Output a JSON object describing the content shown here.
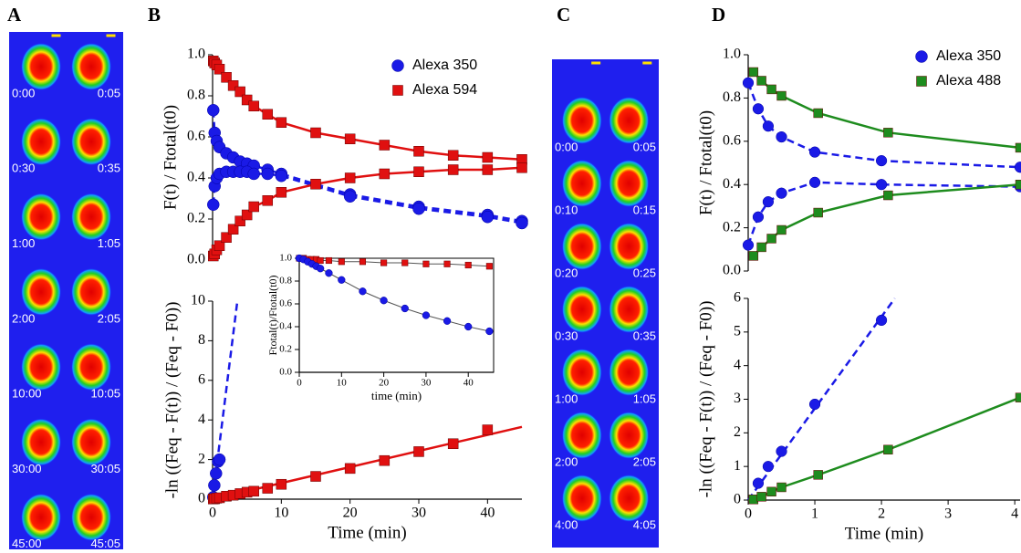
{
  "panel_labels": [
    "A",
    "B",
    "C",
    "D"
  ],
  "images": [
    {
      "rows": [
        [
          "0:00",
          "0:05"
        ],
        [
          "0:30",
          "0:35"
        ],
        [
          "1:00",
          "1:05"
        ],
        [
          "2:00",
          "2:05"
        ],
        [
          "10:00",
          "10:05"
        ],
        [
          "30:00",
          "30:05"
        ],
        [
          "45:00",
          "45:05"
        ]
      ]
    },
    {
      "rows": [
        [
          "0:00",
          "0:05"
        ],
        [
          "0:10",
          "0:15"
        ],
        [
          "0:20",
          "0:25"
        ],
        [
          "0:30",
          "0:35"
        ],
        [
          "1:00",
          "1:05"
        ],
        [
          "2:00",
          "2:05"
        ],
        [
          "4:00",
          "4:05"
        ]
      ]
    }
  ],
  "chart_data": [
    {
      "type": "scatter",
      "ylabel": "F(t) / Ftotal(t0)",
      "xlim": [
        0,
        45
      ],
      "ylim": [
        0,
        1
      ],
      "yticks": [
        {
          "value": 0,
          "label": "0.0"
        },
        0.2,
        0.4,
        0.6,
        0.8,
        {
          "value": 1,
          "label": "1.0"
        }
      ],
      "legend": "upper right",
      "series": [
        {
          "name": "Alexa 350",
          "color": "#1a1ae6",
          "marker": "circle",
          "style": "dashed",
          "x": [
            0.1,
            0.3,
            0.6,
            1,
            2,
            3,
            4,
            5,
            6,
            8,
            10,
            20,
            30,
            40,
            45
          ],
          "values": [
            0.73,
            0.62,
            0.58,
            0.55,
            0.52,
            0.5,
            0.48,
            0.47,
            0.46,
            0.44,
            0.42,
            0.32,
            0.26,
            0.22,
            0.19
          ]
        },
        {
          "color": "#1a1ae6",
          "marker": "circle",
          "style": "dashed",
          "x": [
            0.1,
            0.3,
            0.6,
            1,
            2,
            3,
            4,
            5,
            6,
            8,
            10,
            20,
            30,
            40,
            45
          ],
          "values": [
            0.27,
            0.36,
            0.4,
            0.42,
            0.43,
            0.43,
            0.43,
            0.43,
            0.42,
            0.42,
            0.41,
            0.31,
            0.25,
            0.21,
            0.18
          ]
        },
        {
          "name": "Alexa 594",
          "color": "#e01010",
          "marker": "square",
          "style": "solid",
          "x": [
            0.1,
            0.3,
            0.6,
            1,
            2,
            3,
            4,
            5,
            6,
            8,
            10,
            15,
            20,
            25,
            30,
            35,
            40,
            45
          ],
          "values": [
            0.97,
            0.96,
            0.95,
            0.93,
            0.89,
            0.85,
            0.82,
            0.78,
            0.75,
            0.71,
            0.67,
            0.62,
            0.59,
            0.56,
            0.53,
            0.51,
            0.5,
            0.49
          ]
        },
        {
          "color": "#e01010",
          "marker": "square",
          "style": "solid",
          "x": [
            0.1,
            0.3,
            0.6,
            1,
            2,
            3,
            4,
            5,
            6,
            8,
            10,
            15,
            20,
            25,
            30,
            35,
            40,
            45
          ],
          "values": [
            0.02,
            0.03,
            0.05,
            0.07,
            0.11,
            0.15,
            0.19,
            0.22,
            0.26,
            0.29,
            0.33,
            0.37,
            0.4,
            0.42,
            0.43,
            0.44,
            0.44,
            0.45
          ]
        }
      ]
    },
    {
      "type": "scatter",
      "ylabel": "-ln ((Feq - F(t)) / (Feq - F0))",
      "xlabel": "Time (min)",
      "xlim": [
        0,
        45
      ],
      "ylim": [
        0,
        10
      ],
      "yticks": [
        0,
        2,
        4,
        6,
        8,
        10
      ],
      "xticks": [
        0,
        10,
        20,
        30,
        40
      ],
      "series": [
        {
          "color": "#1a1ae6",
          "style": "dashed",
          "x": [
            0,
            3.6
          ],
          "values": [
            0,
            10
          ]
        },
        {
          "color": "#1a1ae6",
          "marker": "circle",
          "x": [
            0.1,
            0.25,
            0.5,
            0.8,
            1
          ],
          "values": [
            0.1,
            0.7,
            1.3,
            1.9,
            2
          ]
        },
        {
          "color": "#e01010",
          "style": "solid",
          "x": [
            0,
            45
          ],
          "values": [
            0,
            3.65
          ]
        },
        {
          "color": "#e01010",
          "marker": "square",
          "x": [
            0.1,
            0.3,
            0.6,
            1,
            2,
            3,
            4,
            5,
            6,
            8,
            10,
            15,
            20,
            25,
            30,
            35,
            40
          ],
          "values": [
            0.01,
            0.02,
            0.05,
            0.07,
            0.15,
            0.2,
            0.28,
            0.35,
            0.4,
            0.55,
            0.75,
            1.15,
            1.55,
            1.95,
            2.4,
            2.8,
            3.5
          ]
        }
      ]
    },
    {
      "type": "scatter",
      "ylabel": "Ftotal(t)/Ftotal(t0)",
      "xlabel": "time (min)",
      "xlim": [
        0,
        46
      ],
      "ylim": [
        0,
        1
      ],
      "box": true,
      "yticks": [
        {
          "value": 0,
          "label": "0.0"
        },
        0.2,
        0.4,
        0.6,
        0.8,
        {
          "value": 1,
          "label": "1.0"
        }
      ],
      "xticks": [
        0,
        10,
        20,
        30,
        40
      ],
      "series": [
        {
          "color": "#e01010",
          "line_color": "#555555",
          "marker": "square",
          "style": "solid",
          "x": [
            0,
            1,
            2,
            3,
            4,
            5,
            7,
            10,
            15,
            20,
            25,
            30,
            35,
            40,
            45
          ],
          "values": [
            1,
            1,
            0.99,
            0.99,
            0.99,
            0.98,
            0.98,
            0.97,
            0.97,
            0.96,
            0.96,
            0.95,
            0.95,
            0.94,
            0.93
          ]
        },
        {
          "color": "#1a1ae6",
          "line_color": "#555555",
          "marker": "circle",
          "style": "solid",
          "x": [
            0,
            1,
            2,
            3,
            4,
            5,
            7,
            10,
            15,
            20,
            25,
            30,
            35,
            40,
            45
          ],
          "values": [
            1,
            0.99,
            0.97,
            0.95,
            0.93,
            0.91,
            0.87,
            0.81,
            0.71,
            0.63,
            0.56,
            0.5,
            0.45,
            0.4,
            0.36
          ]
        }
      ]
    },
    {
      "type": "scatter",
      "ylabel": "F(t) / Ftotal(t0)",
      "xlim": [
        0,
        4.08
      ],
      "ylim": [
        0,
        1
      ],
      "yticks": [
        {
          "value": 0,
          "label": "0.0"
        },
        0.2,
        0.4,
        0.6,
        0.8,
        {
          "value": 1,
          "label": "1.0"
        }
      ],
      "legend": "upper right",
      "series": [
        {
          "name": "Alexa 350",
          "color": "#1a1ae6",
          "marker": "circle",
          "style": "dashed",
          "x": [
            0,
            0.15,
            0.3,
            0.5,
            1,
            2,
            4.08
          ],
          "values": [
            0.87,
            0.75,
            0.67,
            0.62,
            0.55,
            0.51,
            0.48
          ]
        },
        {
          "color": "#1a1ae6",
          "marker": "circle",
          "style": "dashed",
          "x": [
            0,
            0.15,
            0.3,
            0.5,
            1,
            2,
            4.08
          ],
          "values": [
            0.12,
            0.25,
            0.32,
            0.36,
            0.41,
            0.4,
            0.39
          ]
        },
        {
          "name": "Alexa 488",
          "color": "#1e8c1e",
          "marker": "square",
          "style": "solid",
          "x": [
            0.08,
            0.2,
            0.35,
            0.5,
            1.05,
            2.1,
            4.08
          ],
          "values": [
            0.92,
            0.88,
            0.84,
            0.81,
            0.73,
            0.64,
            0.57
          ]
        },
        {
          "color": "#1e8c1e",
          "marker": "square",
          "style": "solid",
          "x": [
            0.08,
            0.2,
            0.35,
            0.5,
            1.05,
            2.1,
            4.08
          ],
          "values": [
            0.07,
            0.11,
            0.15,
            0.19,
            0.27,
            0.35,
            0.4
          ]
        }
      ]
    },
    {
      "type": "scatter",
      "ylabel": "-ln ((Feq - F(t)) / (Feq - F0))",
      "xlabel": "Time (min)",
      "xlim": [
        0,
        4.08
      ],
      "ylim": [
        0,
        6
      ],
      "yticks": [
        0,
        1,
        2,
        3,
        4,
        5,
        6
      ],
      "xticks": [
        0,
        1,
        2,
        3,
        4
      ],
      "series": [
        {
          "color": "#1a1ae6",
          "style": "dashed",
          "x": [
            0,
            2.2
          ],
          "values": [
            0,
            6
          ]
        },
        {
          "color": "#1a1ae6",
          "marker": "circle",
          "x": [
            0.15,
            0.3,
            0.5,
            1,
            2
          ],
          "values": [
            0.5,
            1,
            1.45,
            2.85,
            5.35
          ]
        },
        {
          "color": "#1e8c1e",
          "style": "solid",
          "x": [
            0,
            0.08,
            0.2,
            0.35,
            0.5,
            1.05,
            2.1,
            4.08
          ],
          "values": [
            0,
            0.02,
            0.1,
            0.25,
            0.38,
            0.75,
            1.5,
            3.05
          ]
        },
        {
          "color": "#1e8c1e",
          "marker": "square",
          "x": [
            0.08,
            0.2,
            0.35,
            0.5,
            1.05,
            2.1,
            4.08
          ],
          "values": [
            0.02,
            0.1,
            0.25,
            0.38,
            0.75,
            1.5,
            3.05
          ]
        }
      ]
    }
  ]
}
